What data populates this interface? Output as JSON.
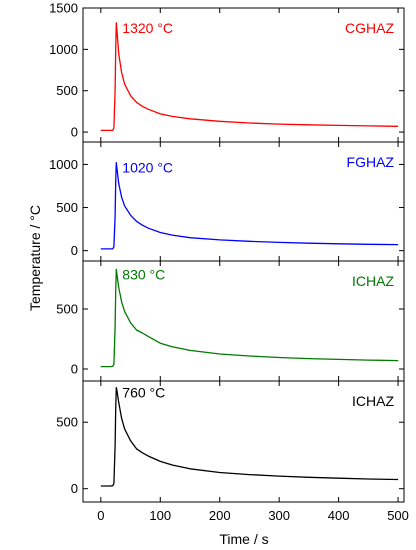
{
  "chart_data": {
    "type": "line",
    "xlabel": "Time / s",
    "ylabel": "Temperature / °C",
    "xlim": [
      -30,
      510
    ],
    "xticks": [
      0,
      100,
      200,
      300,
      400,
      500
    ],
    "grid": false,
    "panels": [
      {
        "label": "CGHAZ",
        "peak_label": "1320 °C",
        "color": "#ff0000",
        "ylim": [
          -120,
          1500
        ],
        "yticks": [
          0,
          500,
          1000,
          1500
        ],
        "x": [
          0,
          15,
          20,
          22,
          24,
          25,
          26,
          27,
          30,
          35,
          40,
          50,
          60,
          70,
          80,
          100,
          120,
          150,
          200,
          250,
          300,
          350,
          400,
          450,
          500
        ],
        "y": [
          20,
          20,
          22,
          50,
          500,
          1000,
          1320,
          1230,
          950,
          720,
          580,
          440,
          360,
          310,
          275,
          220,
          190,
          160,
          130,
          110,
          97,
          88,
          81,
          75,
          70
        ]
      },
      {
        "label": "FGHAZ",
        "peak_label": "1020 °C",
        "color": "#0000ff",
        "ylim": [
          -120,
          1260
        ],
        "yticks": [
          0,
          500,
          1000
        ],
        "x": [
          0,
          15,
          20,
          22,
          24,
          25,
          26,
          27,
          30,
          35,
          40,
          50,
          60,
          70,
          80,
          100,
          120,
          150,
          200,
          250,
          300,
          350,
          400,
          450,
          500
        ],
        "y": [
          20,
          20,
          22,
          45,
          400,
          800,
          1020,
          960,
          780,
          620,
          520,
          410,
          340,
          295,
          260,
          210,
          180,
          150,
          125,
          108,
          96,
          87,
          80,
          74,
          70
        ]
      },
      {
        "label": "ICHAZ",
        "peak_label": "830 °C",
        "color": "#007a00",
        "ylim": [
          -100,
          900
        ],
        "yticks": [
          0,
          500
        ],
        "x": [
          0,
          15,
          20,
          22,
          24,
          25,
          26,
          27,
          30,
          35,
          40,
          50,
          60,
          70,
          80,
          100,
          120,
          150,
          200,
          250,
          300,
          350,
          400,
          450,
          500
        ],
        "y": [
          20,
          20,
          22,
          40,
          350,
          650,
          830,
          790,
          680,
          560,
          480,
          385,
          325,
          300,
          270,
          215,
          185,
          155,
          125,
          108,
          96,
          87,
          80,
          74,
          70
        ]
      },
      {
        "label": "ICHAZ",
        "peak_label": "760 °C",
        "color": "#000000",
        "ylim": [
          -100,
          810
        ],
        "yticks": [
          0,
          500
        ],
        "x": [
          0,
          15,
          20,
          22,
          24,
          25,
          26,
          27,
          30,
          35,
          40,
          50,
          60,
          70,
          80,
          100,
          120,
          150,
          200,
          250,
          300,
          350,
          400,
          450,
          500
        ],
        "y": [
          20,
          20,
          22,
          40,
          320,
          600,
          760,
          740,
          650,
          530,
          450,
          360,
          300,
          270,
          245,
          205,
          178,
          150,
          122,
          106,
          95,
          86,
          79,
          73,
          69
        ]
      }
    ]
  }
}
